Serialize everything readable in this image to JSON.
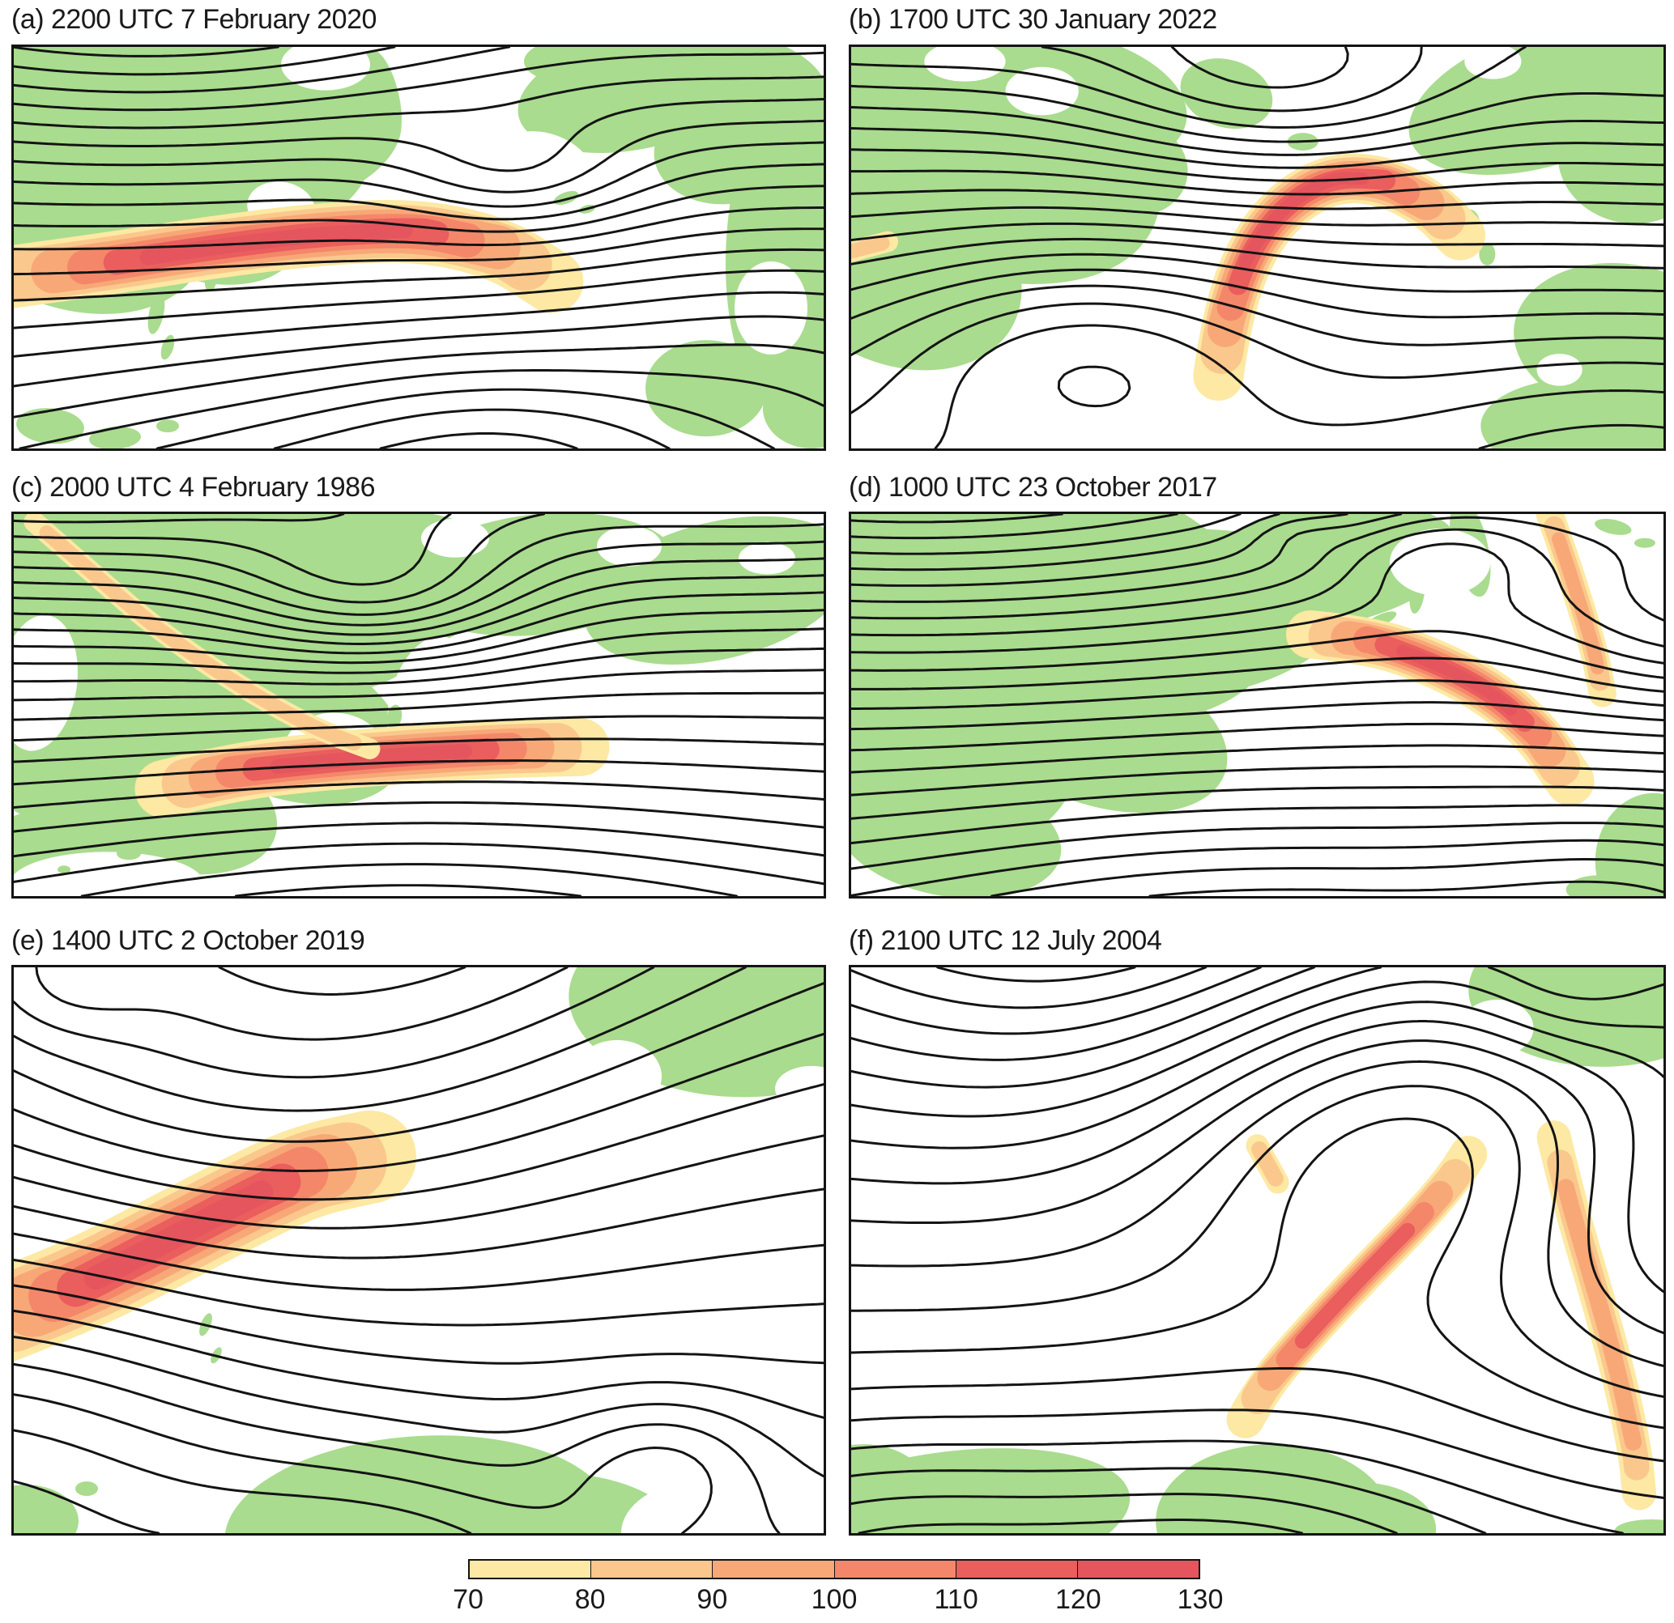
{
  "panels": [
    {
      "id": "a",
      "label": "(a) 2200 UTC 7 February 2020"
    },
    {
      "id": "b",
      "label": "(b) 1700 UTC 30 January 2022"
    },
    {
      "id": "c",
      "label": "(c) 2000 UTC 4 February 1986"
    },
    {
      "id": "d",
      "label": "(d) 1000 UTC 23 October 2017"
    },
    {
      "id": "e",
      "label": "(e) 1400 UTC 2 October 2019"
    },
    {
      "id": "f",
      "label": "(f) 2100 UTC 12 July 2004"
    }
  ],
  "colorbar": {
    "tick_labels": [
      "70",
      "80",
      "90",
      "100",
      "110",
      "120",
      "130"
    ],
    "segment_colors": [
      "#FDE9A3",
      "#FAC88D",
      "#F8A877",
      "#F4876A",
      "#EA5E5D",
      "#E5555E"
    ],
    "border_color": "#141414"
  },
  "colors": {
    "land": "#A9DC8E",
    "ocean": "#FFFFFF",
    "contour": "#141414",
    "title_text": "#1A1A1A"
  },
  "chart_data": {
    "type": "contour-map",
    "description": "Six-panel figure of black contour lines over green land with warm-shaded bands scaled by the bottom colorbar.",
    "panels": [
      {
        "id": "a",
        "title": "2200 UTC 7 February 2020"
      },
      {
        "id": "b",
        "title": "1700 UTC 30 January 2022"
      },
      {
        "id": "c",
        "title": "2000 UTC 4 February 1986"
      },
      {
        "id": "d",
        "title": "1000 UTC 23 October 2017"
      },
      {
        "id": "e",
        "title": "1400 UTC 2 October 2019"
      },
      {
        "id": "f",
        "title": "2100 UTC 12 July 2004"
      }
    ],
    "colorbar_values": [
      70,
      80,
      90,
      100,
      110,
      120,
      130
    ],
    "colorbar_colors": [
      "#FDE9A3",
      "#FAC88D",
      "#F8A877",
      "#F4876A",
      "#EA5E5D",
      "#E5555E"
    ],
    "shading_range": [
      70,
      130
    ]
  }
}
